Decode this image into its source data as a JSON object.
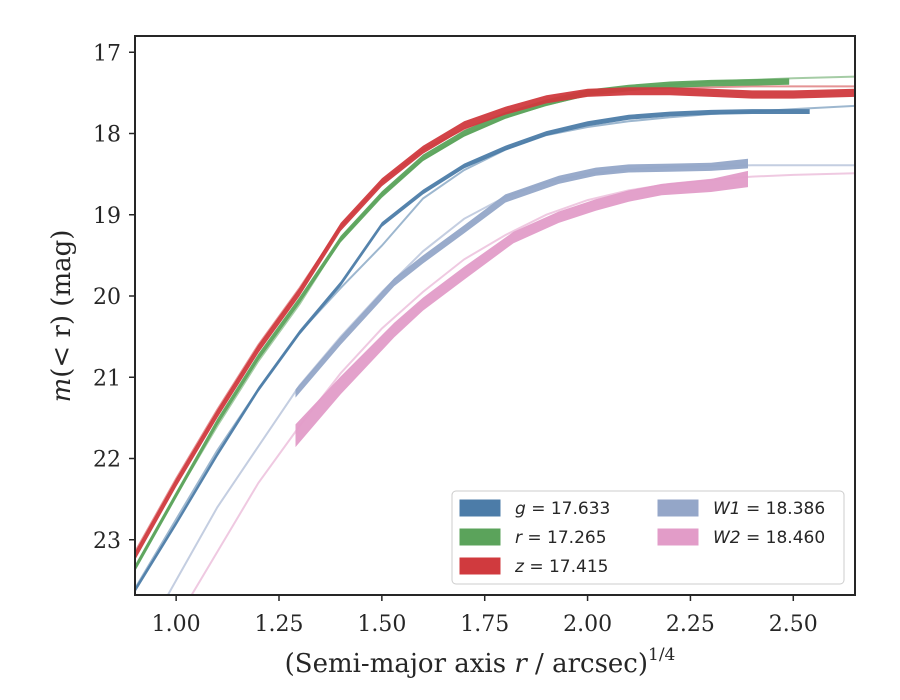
{
  "chart_data": {
    "type": "line",
    "xlabel_main": "(Semi-major axis ",
    "xlabel_var": "r",
    "xlabel_tail": " / arcsec)",
    "xlabel_sup": "1/4",
    "ylabel_main": "m",
    "ylabel_tail": "(< r) (mag)",
    "xlim": [
      0.9,
      2.65
    ],
    "ylim": [
      23.68,
      16.8
    ],
    "xticks": [
      1.0,
      1.25,
      1.5,
      1.75,
      2.0,
      2.25,
      2.5
    ],
    "xtick_labels": [
      "1.00",
      "1.25",
      "1.50",
      "1.75",
      "2.00",
      "2.25",
      "2.50"
    ],
    "yticks": [
      17,
      18,
      19,
      20,
      21,
      22,
      23
    ],
    "ytick_labels": [
      "17",
      "18",
      "19",
      "20",
      "21",
      "22",
      "23"
    ],
    "legend_position": "lower-right",
    "series": [
      {
        "name": "g = 17.633",
        "label_var": "g",
        "label_val": " = 17.633",
        "color": "#4c7ca8",
        "model": {
          "x": [
            0.9,
            1.0,
            1.1,
            1.2,
            1.3,
            1.4,
            1.5,
            1.6,
            1.7,
            1.8,
            1.9,
            2.0,
            2.1,
            2.2,
            2.3,
            2.4,
            2.5,
            2.65
          ],
          "y": [
            23.6,
            22.75,
            21.9,
            21.15,
            20.45,
            19.9,
            19.38,
            18.8,
            18.45,
            18.2,
            18.02,
            17.92,
            17.85,
            17.8,
            17.76,
            17.73,
            17.7,
            17.66
          ]
        },
        "data": {
          "x": [
            0.9,
            1.0,
            1.1,
            1.2,
            1.3,
            1.4,
            1.5,
            1.6,
            1.7,
            1.8,
            1.9,
            2.0,
            2.1,
            2.2,
            2.3,
            2.4,
            2.54
          ],
          "y": [
            23.62,
            22.8,
            21.95,
            21.15,
            20.45,
            19.85,
            19.12,
            18.72,
            18.4,
            18.18,
            18.0,
            17.88,
            17.8,
            17.76,
            17.74,
            17.73,
            17.73
          ],
          "err": [
            0.03,
            0.03,
            0.03,
            0.03,
            0.03,
            0.03,
            0.03,
            0.03,
            0.03,
            0.03,
            0.03,
            0.03,
            0.03,
            0.03,
            0.03,
            0.03,
            0.03
          ]
        }
      },
      {
        "name": "r = 17.265",
        "label_var": "r",
        "label_val": " = 17.265",
        "color": "#5ba35b",
        "model": {
          "x": [
            0.9,
            1.0,
            1.1,
            1.2,
            1.3,
            1.4,
            1.5,
            1.6,
            1.7,
            1.8,
            1.9,
            2.0,
            2.1,
            2.2,
            2.3,
            2.4,
            2.5,
            2.65
          ],
          "y": [
            23.35,
            22.45,
            21.6,
            20.8,
            20.1,
            19.3,
            18.75,
            18.32,
            18.02,
            17.8,
            17.65,
            17.52,
            17.45,
            17.4,
            17.36,
            17.34,
            17.32,
            17.3
          ]
        },
        "data": {
          "x": [
            0.9,
            1.0,
            1.1,
            1.2,
            1.3,
            1.4,
            1.5,
            1.6,
            1.7,
            1.8,
            1.9,
            2.0,
            2.1,
            2.2,
            2.3,
            2.4,
            2.49
          ],
          "y": [
            23.35,
            22.45,
            21.55,
            20.75,
            20.05,
            19.3,
            18.75,
            18.3,
            18.0,
            17.78,
            17.62,
            17.5,
            17.44,
            17.4,
            17.38,
            17.37,
            17.36
          ],
          "err": [
            0.04,
            0.04,
            0.04,
            0.04,
            0.04,
            0.04,
            0.04,
            0.04,
            0.04,
            0.04,
            0.04,
            0.04,
            0.04,
            0.04,
            0.04,
            0.04,
            0.04
          ]
        }
      },
      {
        "name": "z = 17.415",
        "label_var": "z",
        "label_val": " = 17.415",
        "color": "#d03a3e",
        "model": {
          "x": [
            0.9,
            1.0,
            1.1,
            1.2,
            1.3,
            1.4,
            1.5,
            1.6,
            1.7,
            1.8,
            1.9,
            2.0,
            2.1,
            2.2,
            2.3,
            2.4,
            2.5,
            2.65
          ],
          "y": [
            23.15,
            22.25,
            21.4,
            20.6,
            19.9,
            19.15,
            18.6,
            18.2,
            17.95,
            17.75,
            17.6,
            17.5,
            17.46,
            17.44,
            17.43,
            17.42,
            17.42,
            17.42
          ]
        },
        "data": {
          "x": [
            0.9,
            1.0,
            1.1,
            1.2,
            1.3,
            1.4,
            1.5,
            1.6,
            1.7,
            1.8,
            1.9,
            2.0,
            2.1,
            2.2,
            2.3,
            2.4,
            2.5,
            2.65
          ],
          "y": [
            23.2,
            22.3,
            21.45,
            20.65,
            19.95,
            19.15,
            18.6,
            18.2,
            17.9,
            17.72,
            17.58,
            17.5,
            17.48,
            17.48,
            17.5,
            17.52,
            17.52,
            17.5
          ],
          "err": [
            0.05,
            0.05,
            0.05,
            0.05,
            0.05,
            0.05,
            0.05,
            0.05,
            0.05,
            0.05,
            0.05,
            0.05,
            0.05,
            0.05,
            0.05,
            0.05,
            0.05,
            0.05
          ]
        }
      },
      {
        "name": "W1 = 18.386",
        "label_var": "W1",
        "label_val": " = 18.386",
        "color": "#94a6c8",
        "model": {
          "x": [
            0.9,
            1.0,
            1.1,
            1.2,
            1.3,
            1.4,
            1.5,
            1.6,
            1.7,
            1.8,
            1.9,
            2.0,
            2.1,
            2.2,
            2.3,
            2.4,
            2.5,
            2.65
          ],
          "y": [
            24.4,
            23.5,
            22.6,
            21.85,
            21.1,
            20.5,
            19.95,
            19.45,
            19.05,
            18.78,
            18.6,
            18.5,
            18.44,
            18.41,
            18.4,
            18.39,
            18.39,
            18.39
          ]
        },
        "data": {
          "x": [
            1.29,
            1.4,
            1.53,
            1.6,
            1.7,
            1.8,
            1.93,
            2.02,
            2.1,
            2.2,
            2.3,
            2.39
          ],
          "y": [
            21.2,
            20.55,
            19.83,
            19.55,
            19.18,
            18.8,
            18.57,
            18.47,
            18.43,
            18.42,
            18.41,
            18.37
          ],
          "err": [
            0.05,
            0.05,
            0.05,
            0.05,
            0.05,
            0.05,
            0.05,
            0.05,
            0.05,
            0.05,
            0.05,
            0.06
          ]
        }
      },
      {
        "name": "W2 = 18.460",
        "label_var": "W2",
        "label_val": " = 18.460",
        "color": "#e29cc8",
        "model": {
          "x": [
            0.9,
            1.0,
            1.1,
            1.2,
            1.3,
            1.4,
            1.5,
            1.6,
            1.7,
            1.8,
            1.9,
            2.0,
            2.1,
            2.2,
            2.3,
            2.4,
            2.5,
            2.65
          ],
          "y": [
            24.9,
            24.0,
            23.15,
            22.3,
            21.6,
            20.95,
            20.4,
            19.95,
            19.55,
            19.25,
            19.0,
            18.82,
            18.7,
            18.62,
            18.57,
            18.53,
            18.51,
            18.49
          ]
        },
        "data": {
          "x": [
            1.29,
            1.4,
            1.53,
            1.6,
            1.7,
            1.82,
            1.93,
            2.02,
            2.1,
            2.18,
            2.3,
            2.39
          ],
          "y": [
            21.72,
            21.1,
            20.42,
            20.1,
            19.72,
            19.28,
            19.03,
            18.88,
            18.77,
            18.69,
            18.64,
            18.56
          ],
          "err": [
            0.14,
            0.11,
            0.09,
            0.08,
            0.08,
            0.07,
            0.07,
            0.07,
            0.07,
            0.07,
            0.08,
            0.1
          ]
        }
      }
    ]
  }
}
